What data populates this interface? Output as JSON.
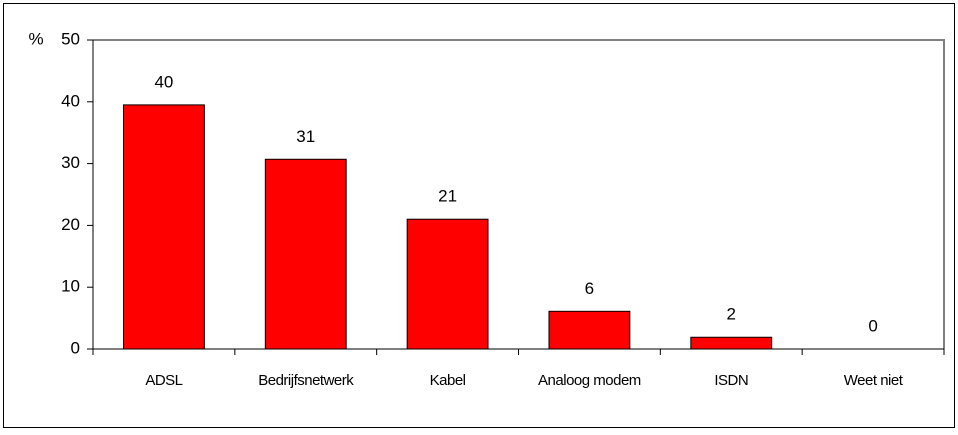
{
  "chart_data": {
    "type": "bar",
    "ylabel": "%",
    "categories": [
      "ADSL",
      "Bedrijfsnetwerk",
      "Kabel",
      "Analoog modem",
      "ISDN",
      "Weet niet"
    ],
    "values": [
      39.5,
      30.7,
      21,
      6.1,
      1.9,
      0
    ],
    "value_labels": [
      "40",
      "31",
      "21",
      "6",
      "2",
      "0"
    ],
    "color": "#ff0000",
    "ylim": [
      0,
      50
    ],
    "yticks": [
      0,
      10,
      20,
      30,
      40,
      50
    ],
    "grid": false
  }
}
